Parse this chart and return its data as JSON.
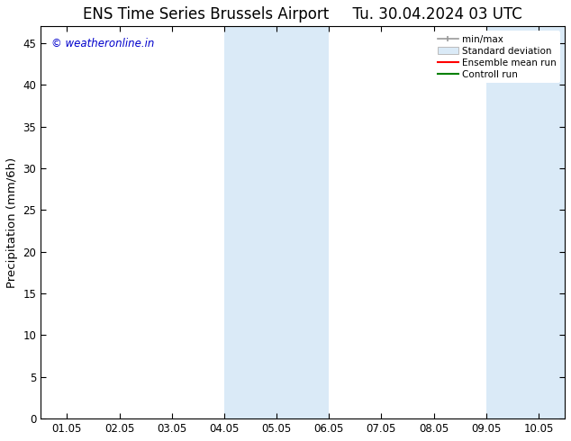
{
  "title": "ENS Time Series Brussels Airport     Tu. 30.04.2024 03 UTC",
  "ylabel": "Precipitation (mm/6h)",
  "xlabel": "",
  "ylim": [
    0,
    47
  ],
  "yticks": [
    0,
    5,
    10,
    15,
    20,
    25,
    30,
    35,
    40,
    45
  ],
  "xtick_labels": [
    "01.05",
    "02.05",
    "03.05",
    "04.05",
    "05.05",
    "06.05",
    "07.05",
    "08.05",
    "09.05",
    "10.05"
  ],
  "xlim": [
    -0.5,
    9.5
  ],
  "shaded_regions": [
    {
      "x_start": 3.0,
      "x_end": 5.0,
      "color": "#daeaf7"
    },
    {
      "x_start": 8.0,
      "x_end": 9.5,
      "color": "#daeaf7"
    }
  ],
  "legend_labels": [
    "min/max",
    "Standard deviation",
    "Ensemble mean run",
    "Controll run"
  ],
  "legend_colors": [
    "#999999",
    "#c8c8c8",
    "#ff0000",
    "#008000"
  ],
  "watermark_text": "© weatheronline.in",
  "watermark_color": "#0000cc",
  "bg_color": "#ffffff",
  "plot_bg_color": "#ffffff",
  "title_fontsize": 12,
  "tick_fontsize": 8.5,
  "ylabel_fontsize": 9.5
}
